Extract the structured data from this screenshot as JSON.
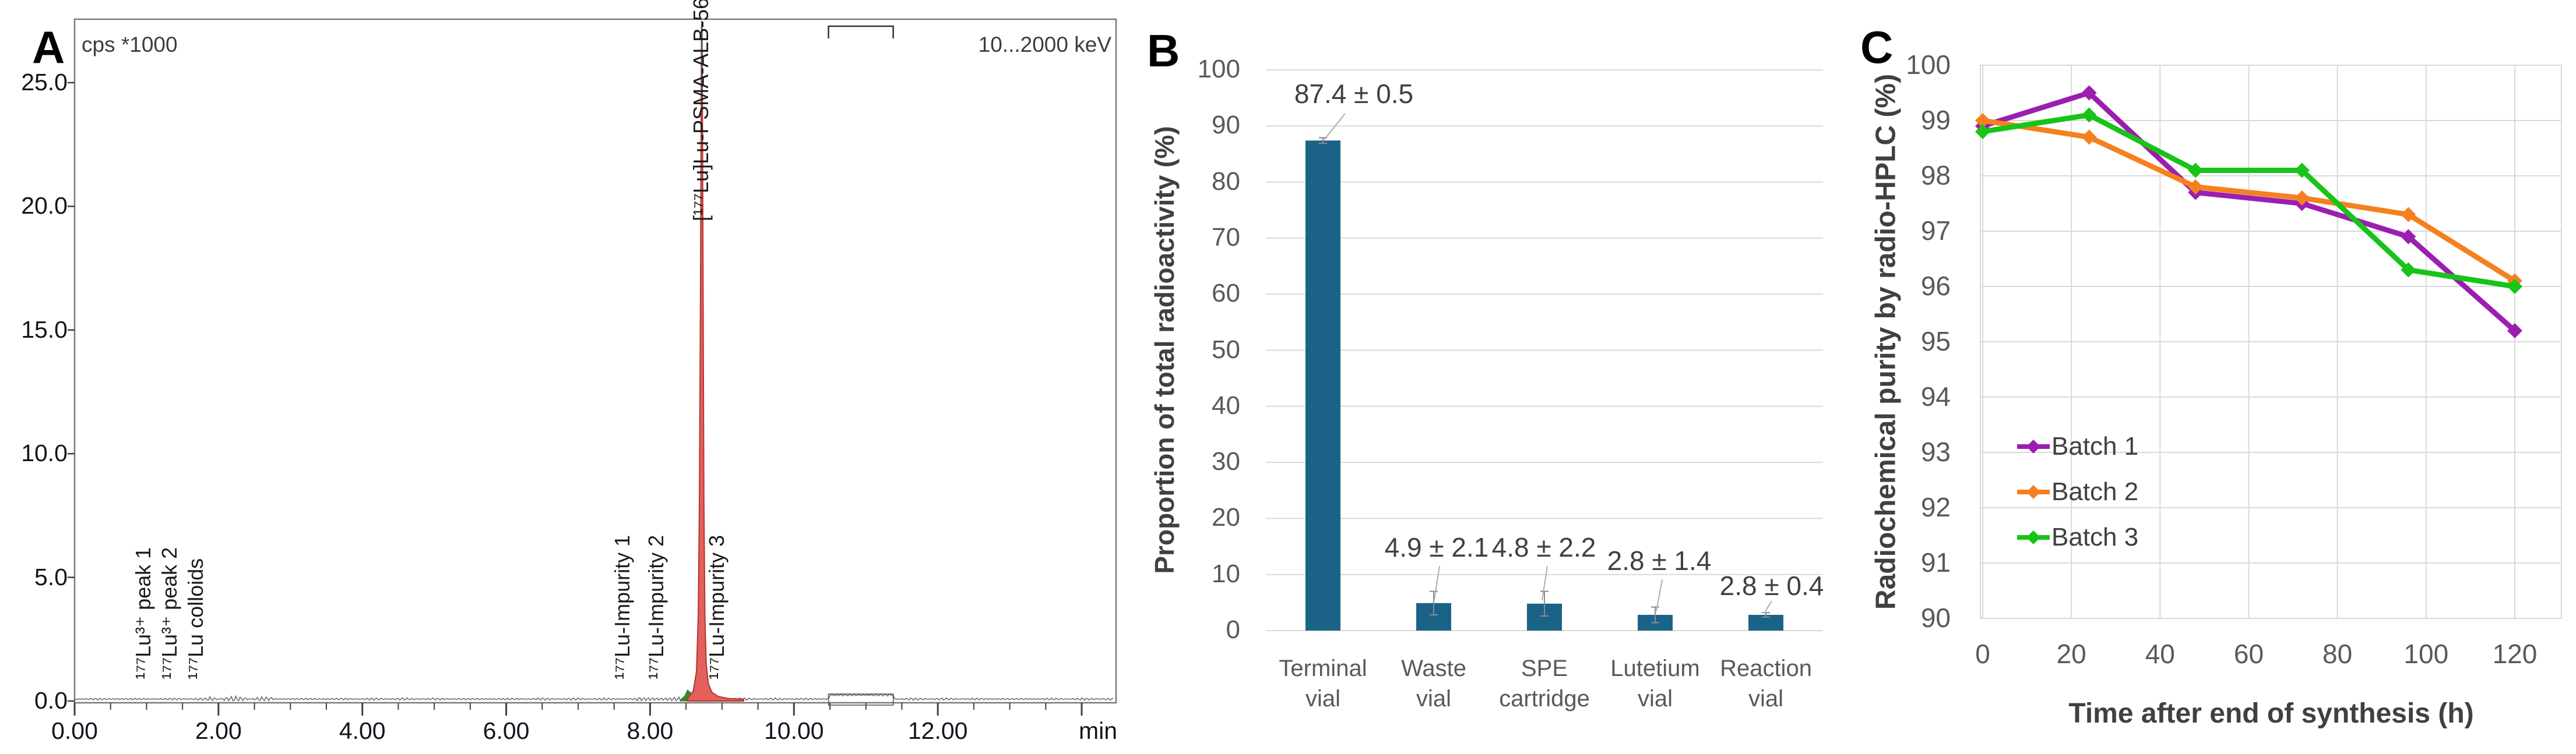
{
  "panels": {
    "a_label": "A",
    "b_label": "B",
    "c_label": "C"
  },
  "chart_data": [
    {
      "id": "A",
      "type": "line",
      "kind": "radio-HPLC chromatogram",
      "y_axis_unit": "cps *1000",
      "energy_window": "10...2000 keV",
      "x_axis_unit": "min",
      "xlim": [
        0,
        14.5
      ],
      "ylim": [
        0,
        27.6
      ],
      "x_ticks": [
        "0.00",
        "2.00",
        "4.00",
        "6.00",
        "8.00",
        "10.00",
        "12.00"
      ],
      "y_ticks": [
        "25.0",
        "20.0",
        "15.0",
        "10.0",
        "5.0",
        "0.0"
      ],
      "baseline_kcps": 0.08,
      "main_peak": {
        "label": "[¹⁷⁷Lu]Lu-PSMA-ALB-56",
        "retention_time_min": 8.72,
        "height_kcps": 27.3,
        "clipped_at_plot_top": true,
        "fill": "#e4605a",
        "stroke": "#b23632"
      },
      "pre_peak": {
        "retention_time_min": 8.52,
        "height_kcps": 0.45,
        "color": "#2e8b2e"
      },
      "annotations": [
        {
          "text": "¹⁷⁷Lu³⁺ peak 1",
          "time_min": 1.26
        },
        {
          "text": "¹⁷⁷Lu³⁺ peak 2",
          "time_min": 1.62
        },
        {
          "text": "¹⁷⁷Lu colloids",
          "time_min": 1.99
        },
        {
          "text": "¹⁷⁷Lu-Impurity 1",
          "time_min": 7.92
        },
        {
          "text": "¹⁷⁷Lu-Impurity 2",
          "time_min": 8.39
        },
        {
          "text": "¹⁷⁷Lu-Impurity 3",
          "time_min": 9.23
        }
      ],
      "integration_window_min": [
        10.48,
        11.38
      ]
    },
    {
      "id": "B",
      "type": "bar",
      "ylabel": "Proportion of total radioactivity (%)",
      "ylim": [
        0,
        100
      ],
      "ytick_step": 10,
      "y_tick_labels": [
        "0",
        "10",
        "20",
        "30",
        "40",
        "50",
        "60",
        "70",
        "80",
        "90",
        "100"
      ],
      "categories": [
        {
          "line1": "Terminal",
          "line2": "vial"
        },
        {
          "line1": "Waste",
          "line2": "vial"
        },
        {
          "line1": "SPE",
          "line2": "cartridge"
        },
        {
          "line1": "Lutetium",
          "line2": "vial"
        },
        {
          "line1": "Reaction",
          "line2": "vial"
        }
      ],
      "values": [
        87.4,
        4.9,
        4.8,
        2.8,
        2.8
      ],
      "errors": [
        0.5,
        2.1,
        2.2,
        1.4,
        0.4
      ],
      "value_labels": [
        "87.4 ± 0.5",
        "4.9 ± 2.1",
        "4.8 ± 2.2",
        "2.8 ± 1.4",
        "2.8 ± 0.4"
      ],
      "bar_color": "#1b6289",
      "grid_color": "#d9d9d9",
      "grid": true,
      "legend_position": "none"
    },
    {
      "id": "C",
      "type": "line",
      "xlabel": "Time after end of synthesis (h)",
      "ylabel": "Radiochemical purity by radio-HPLC (%)",
      "x": [
        0,
        24,
        48,
        72,
        96,
        120
      ],
      "series": [
        {
          "name": "Batch 1",
          "color": "#9b1eb0",
          "values": [
            98.9,
            99.5,
            97.7,
            97.5,
            96.9,
            95.2
          ]
        },
        {
          "name": "Batch 2",
          "color": "#f5801e",
          "values": [
            99.0,
            98.7,
            97.8,
            97.6,
            97.3,
            96.1
          ]
        },
        {
          "name": "Batch 3",
          "color": "#17c417",
          "values": [
            98.8,
            99.1,
            98.1,
            98.1,
            96.3,
            96.0
          ]
        }
      ],
      "xlim": [
        0,
        130.5
      ],
      "ylim": [
        90,
        100
      ],
      "x_tick_labels": [
        "0",
        "20",
        "40",
        "60",
        "80",
        "100",
        "120"
      ],
      "y_tick_labels": [
        "90",
        "91",
        "92",
        "93",
        "94",
        "95",
        "96",
        "97",
        "98",
        "99",
        "100"
      ],
      "xtick_step": 20,
      "ytick_step": 1,
      "grid": true,
      "grid_color": "#d9d9d9",
      "legend_position": "inside-left"
    }
  ]
}
